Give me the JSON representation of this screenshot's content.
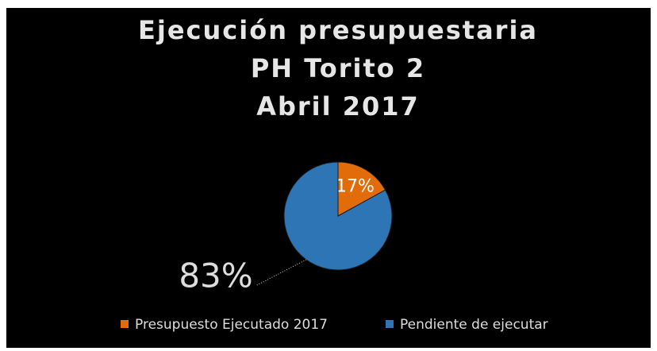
{
  "chart_data": {
    "type": "pie",
    "title": [
      "Ejecución presupuestaria",
      "PH Torito 2",
      "Abril 2017"
    ],
    "categories": [
      "Presupuesto Ejecutado 2017",
      "Pendiente de ejecutar"
    ],
    "values": [
      17,
      83
    ],
    "value_labels": [
      "17%",
      "83%"
    ],
    "colors": [
      "#e36c0a",
      "#2e75b6"
    ],
    "legend": "bottom"
  }
}
